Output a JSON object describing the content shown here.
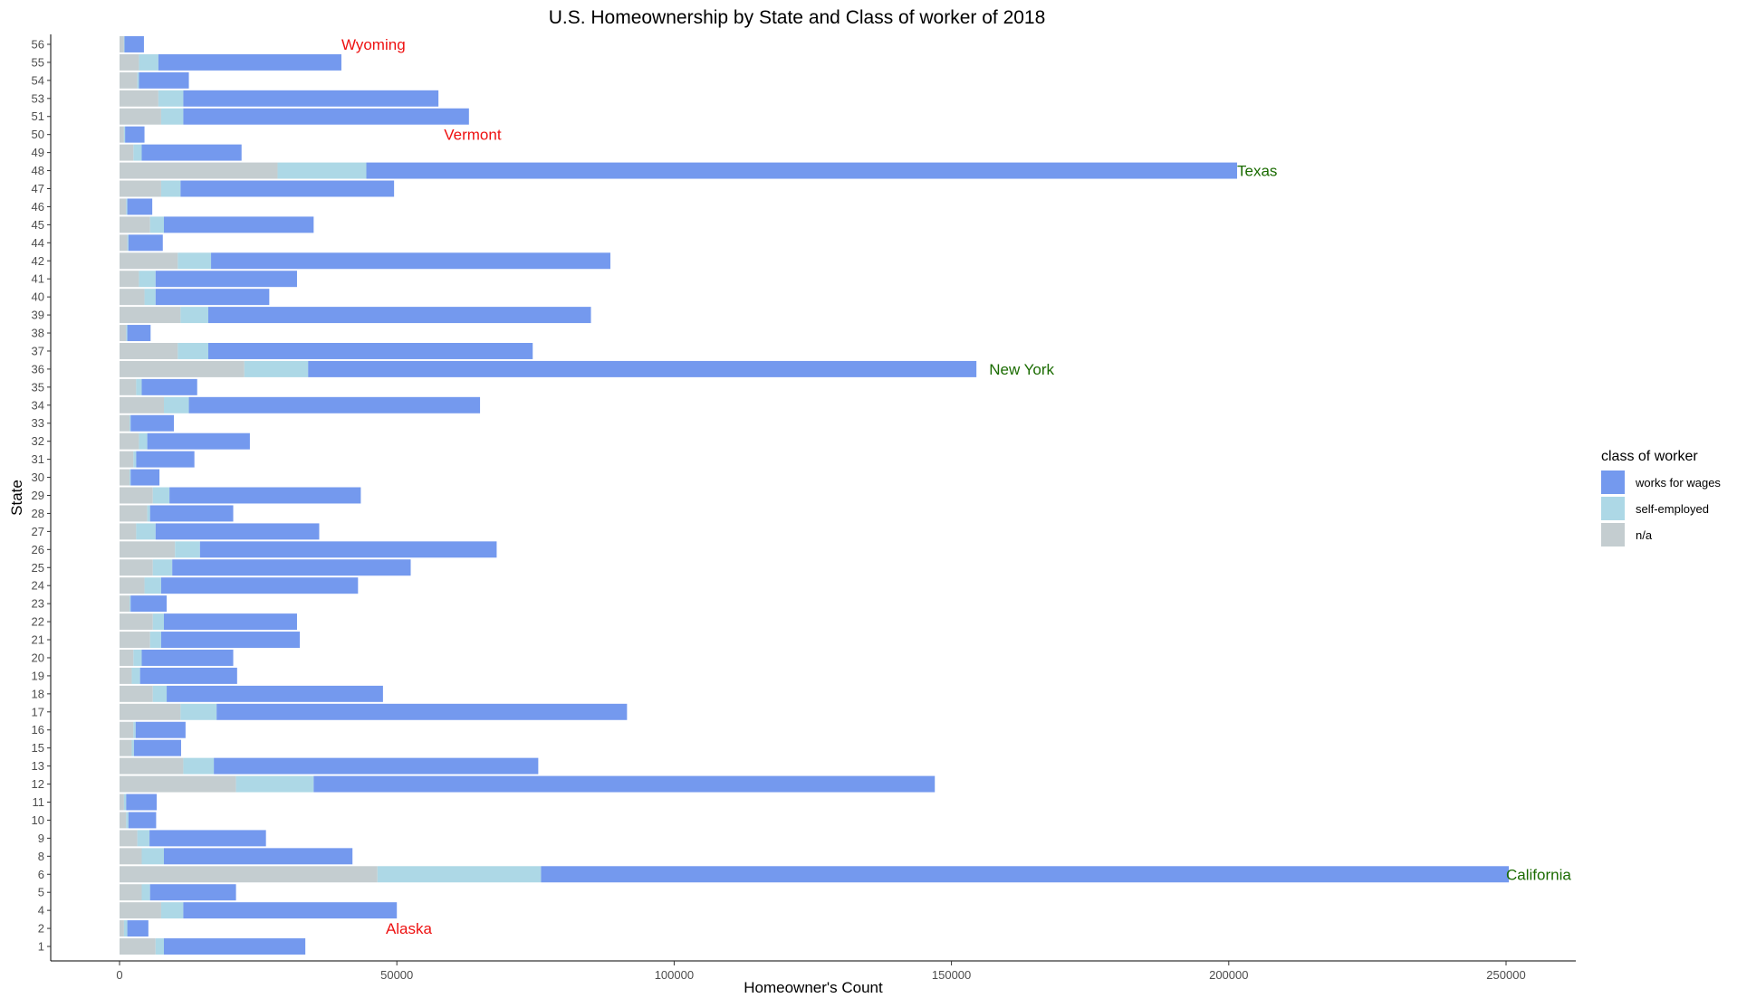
{
  "chart_data": {
    "type": "bar",
    "orientation": "horizontal",
    "stacked": true,
    "title": "U.S. Homeownership by State and Class of worker of 2018",
    "xlabel": "Homeowner's Count",
    "ylabel": "State",
    "xlim": [
      -12500,
      262000
    ],
    "x_ticks": [
      0,
      50000,
      100000,
      150000,
      200000,
      250000
    ],
    "x_tick_labels": [
      "0",
      "50000",
      "100000",
      "150000",
      "200000",
      "250000"
    ],
    "grid": false,
    "legend_position": "right",
    "legend_title": "class of worker",
    "categories": [
      "1",
      "2",
      "4",
      "5",
      "6",
      "8",
      "9",
      "10",
      "11",
      "12",
      "13",
      "15",
      "16",
      "17",
      "18",
      "19",
      "20",
      "21",
      "22",
      "23",
      "24",
      "25",
      "26",
      "27",
      "28",
      "29",
      "30",
      "31",
      "32",
      "33",
      "34",
      "35",
      "36",
      "37",
      "38",
      "39",
      "40",
      "41",
      "42",
      "44",
      "45",
      "46",
      "47",
      "48",
      "49",
      "50",
      "51",
      "53",
      "54",
      "55",
      "56"
    ],
    "series": [
      {
        "name": "n/a",
        "color": "#c4cdd0",
        "values": [
          6500,
          800,
          7500,
          4000,
          46500,
          4000,
          3200,
          1200,
          800,
          21000,
          11500,
          2200,
          2500,
          11000,
          6000,
          2200,
          2500,
          5500,
          6000,
          1800,
          4500,
          6000,
          10000,
          3000,
          5000,
          6000,
          1800,
          2500,
          3500,
          1800,
          8000,
          3000,
          22500,
          10500,
          1200,
          11000,
          4500,
          3500,
          10500,
          1400,
          5500,
          1200,
          7500,
          28500,
          2500,
          800,
          7500,
          7000,
          3200,
          3500,
          800
        ],
        "added_for_layout": [
          "1500",
          "600",
          "4000",
          "1500",
          "29500",
          "4000",
          "2200",
          "400",
          "400",
          "14000",
          "5500",
          "400",
          "400",
          "6500",
          "2500",
          "1500",
          "1500",
          "2000",
          "2000",
          "200",
          "3000",
          "3500",
          "4500",
          "3500",
          "500",
          "3000",
          "200",
          "500",
          "1500",
          "200",
          "4500",
          "1000",
          "11500",
          "5500",
          "200",
          "5000",
          "2000",
          "3000",
          "6000",
          "200",
          "2500",
          "200",
          "3500",
          "16000",
          "1500",
          "200",
          "4000",
          "4500",
          "300",
          "3500",
          "100"
        ]
      },
      {
        "name": "self-employed",
        "color": "#add8e6",
        "values": [
          1500,
          600,
          4000,
          1500,
          29500,
          4000,
          2200,
          400,
          400,
          14000,
          5500,
          400,
          400,
          6500,
          2500,
          1500,
          1500,
          2000,
          2000,
          200,
          3000,
          3500,
          4500,
          3500,
          500,
          3000,
          200,
          500,
          1500,
          200,
          4500,
          1000,
          11500,
          5500,
          200,
          5000,
          2000,
          3000,
          6000,
          200,
          2500,
          200,
          3500,
          16000,
          1500,
          200,
          4000,
          4500,
          300,
          3500,
          100
        ]
      },
      {
        "name": "works for wages",
        "color": "#7499ee",
        "values": [
          25500,
          3800,
          38500,
          15500,
          174500,
          34000,
          21000,
          5000,
          5500,
          112000,
          58500,
          8500,
          9000,
          74000,
          39000,
          17500,
          16500,
          25000,
          24000,
          6500,
          35500,
          43000,
          53500,
          29500,
          15000,
          34500,
          5200,
          10500,
          18500,
          7800,
          52500,
          10000,
          120500,
          58500,
          4200,
          69000,
          20500,
          25500,
          72000,
          6200,
          27000,
          4500,
          38500,
          157000,
          18000,
          3500,
          51500,
          46000,
          9000,
          33000,
          3500
        ]
      }
    ],
    "annotations": [
      {
        "text": "Wyoming",
        "category": "56",
        "x": 40000,
        "color": "#ee1111",
        "anchor": "start"
      },
      {
        "text": "Vermont",
        "category": "50",
        "x": 58500,
        "color": "#ee1111",
        "anchor": "start"
      },
      {
        "text": "Texas",
        "category": "48",
        "x": 201500,
        "color": "#1a6b00",
        "anchor": "start"
      },
      {
        "text": "New York",
        "category": "36",
        "x": 156800,
        "color": "#1a6b00",
        "anchor": "start"
      },
      {
        "text": "California",
        "category": "6",
        "x": 250000,
        "color": "#1a6b00",
        "anchor": "start"
      },
      {
        "text": "Alaska",
        "category": "2",
        "x": 48000,
        "color": "#ee1111",
        "anchor": "start"
      }
    ]
  }
}
